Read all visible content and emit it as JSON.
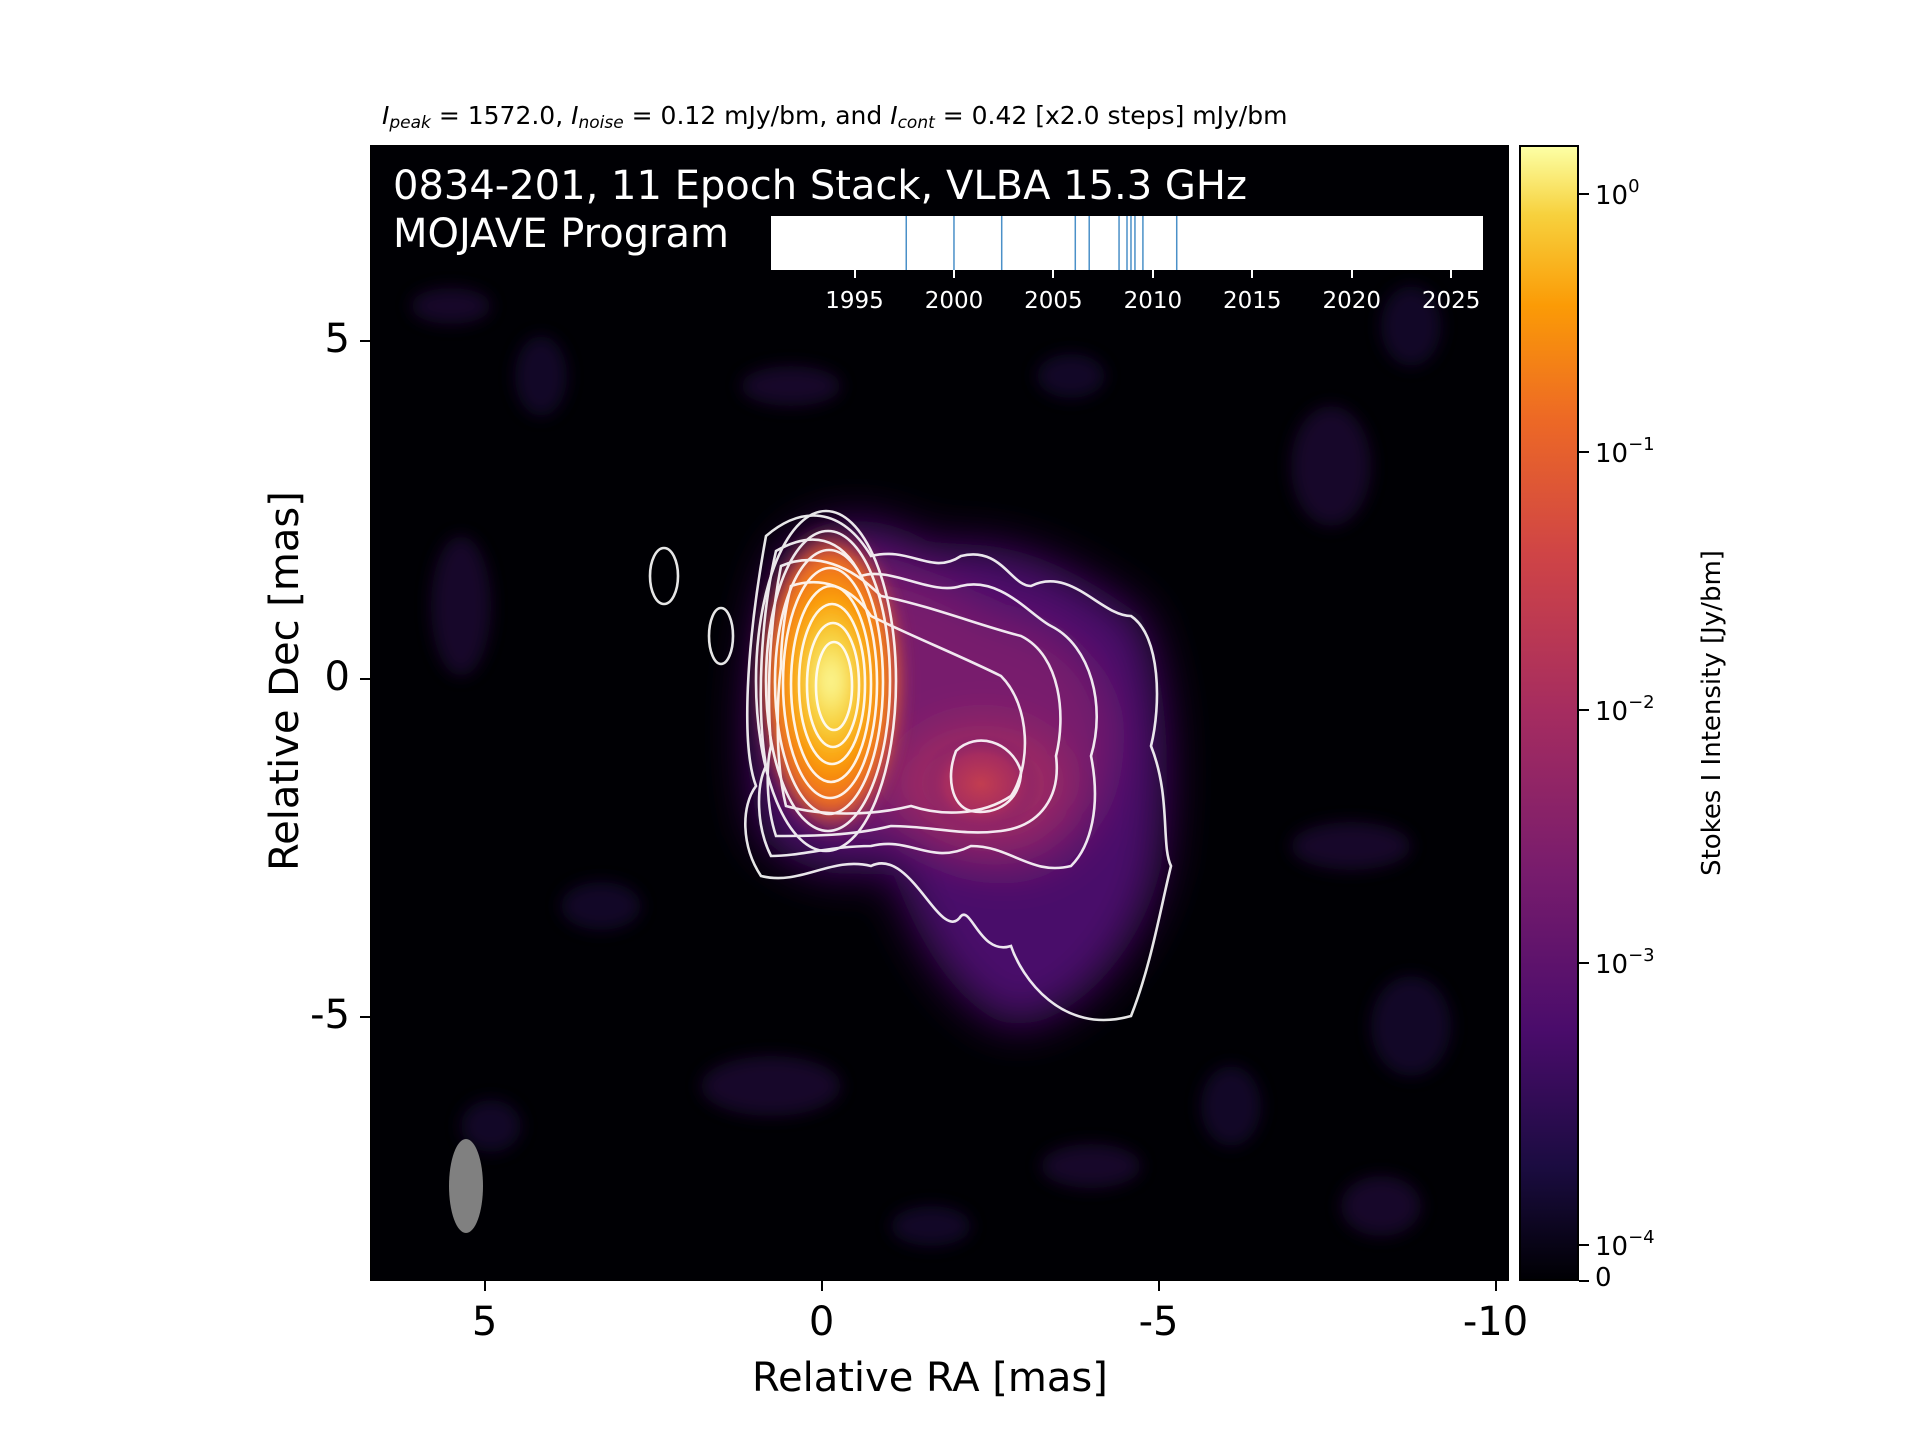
{
  "figure": {
    "title_prefix_peak": "I",
    "title_peak_sub": "peak",
    "title_peak_value": " = 1572.0, ",
    "title_noise_sym": "I",
    "title_noise_sub": "noise",
    "title_noise_value": " = 0.12 mJy/bm, and ",
    "title_cont_sym": "I",
    "title_cont_sub": "cont",
    "title_cont_value": " = 0.42 [x2.0 steps] mJy/bm",
    "overlay_line1": "0834-201, 11 Epoch Stack, VLBA 15.3 GHz",
    "overlay_line2": "MOJAVE Program"
  },
  "axes": {
    "xlabel": "Relative RA [mas]",
    "ylabel": "Relative Dec [mas]",
    "x_ticks": [
      "5",
      "0",
      "-5",
      "-10"
    ],
    "y_ticks": [
      "5",
      "0",
      "-5"
    ],
    "x_range_mas": [
      6.7,
      -10.2
    ],
    "y_range_mas": [
      -8.9,
      7.9
    ],
    "colormap": "inferno",
    "contour_color": "#ffffff",
    "beam_color": "#808080"
  },
  "colorbar": {
    "title": "Stokes I Intensity [Jy/bm]",
    "ticks": [
      {
        "base": "10",
        "exp": "0"
      },
      {
        "base": "10",
        "exp": "−1"
      },
      {
        "base": "10",
        "exp": "−2"
      },
      {
        "base": "10",
        "exp": "−3"
      },
      {
        "base": "10",
        "exp": "−4"
      },
      {
        "base": "0",
        "exp": ""
      }
    ],
    "scale": "log"
  },
  "timeline": {
    "year_labels": [
      "1995",
      "2000",
      "2005",
      "2010",
      "2015",
      "2020",
      "2025"
    ],
    "epochs": [
      1997.6,
      2000.0,
      2002.4,
      2006.1,
      2006.8,
      2008.3,
      2008.7,
      2008.9,
      2009.1,
      2009.5,
      2011.2
    ],
    "line_color": "#4a90c8"
  }
}
